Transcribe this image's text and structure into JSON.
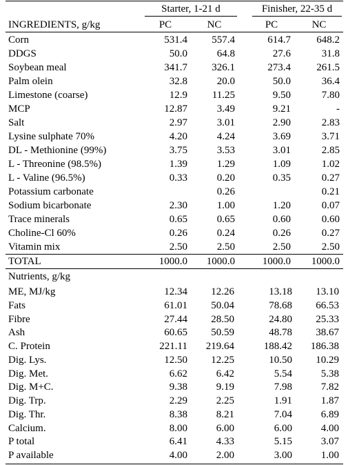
{
  "header": {
    "groups": [
      "Starter, 1-21 d",
      "Finisher, 22-35 d"
    ],
    "ingredients_label": "INGREDIENTS, g/kg",
    "cols": [
      "PC",
      "NC",
      "PC",
      "NC"
    ]
  },
  "ingredients": [
    {
      "label": "Corn",
      "v": [
        "531.4",
        "557.4",
        "614.7",
        "648.2"
      ]
    },
    {
      "label": "DDGS",
      "v": [
        "50.0",
        "64.8",
        "27.6",
        "31.8"
      ]
    },
    {
      "label": "Soybean meal",
      "v": [
        "341.7",
        "326.1",
        "273.4",
        "261.5"
      ]
    },
    {
      "label": "Palm olein",
      "v": [
        "32.8",
        "20.0",
        "50.0",
        "36.4"
      ]
    },
    {
      "label": "Limestone (coarse)",
      "v": [
        "12.9",
        "11.25",
        "9.50",
        "7.80"
      ]
    },
    {
      "label": "MCP",
      "v": [
        "12.87",
        "3.49",
        "9.21",
        "-"
      ]
    },
    {
      "label": "Salt",
      "v": [
        "2.97",
        "3.01",
        "2.90",
        "2.83"
      ]
    },
    {
      "label": "Lysine sulphate 70%",
      "v": [
        "4.20",
        "4.24",
        "3.69",
        "3.71"
      ]
    },
    {
      "label": "DL - Methionine (99%)",
      "v": [
        "3.75",
        "3.53",
        "3.01",
        "2.85"
      ]
    },
    {
      "label": "L - Threonine (98.5%)",
      "v": [
        "1.39",
        "1.29",
        "1.09",
        "1.02"
      ]
    },
    {
      "label": "L - Valine (96.5%)",
      "v": [
        "0.33",
        "0.20",
        "0.35",
        "0.27"
      ]
    },
    {
      "label": "Potassium carbonate",
      "v": [
        "",
        "0.26",
        "",
        "0.21"
      ]
    },
    {
      "label": "Sodium bicarbonate",
      "v": [
        "2.30",
        "1.00",
        "1.20",
        "0.07"
      ]
    },
    {
      "label": "Trace minerals",
      "v": [
        "0.65",
        "0.65",
        "0.60",
        "0.60"
      ]
    },
    {
      "label": "Choline-Cl 60%",
      "v": [
        "0.26",
        "0.24",
        "0.26",
        "0.27"
      ]
    },
    {
      "label": "Vitamin mix",
      "v": [
        "2.50",
        "2.50",
        "2.50",
        "2.50"
      ]
    }
  ],
  "total": {
    "label": "TOTAL",
    "v": [
      "1000.0",
      "1000.0",
      "1000.0",
      "1000.0"
    ]
  },
  "nutrients_label": "Nutrients, g/kg",
  "nutrients": [
    {
      "label": "ME, MJ/kg",
      "v": [
        "12.34",
        "12.26",
        "13.18",
        "13.10"
      ]
    },
    {
      "label": "Fats",
      "v": [
        "61.01",
        "50.04",
        "78.68",
        "66.53"
      ]
    },
    {
      "label": "Fibre",
      "v": [
        "27.44",
        "28.50",
        "24.80",
        "25.33"
      ]
    },
    {
      "label": "Ash",
      "v": [
        "60.65",
        "50.59",
        "48.78",
        "38.67"
      ]
    },
    {
      "label": "C. Protein",
      "v": [
        "221.11",
        "219.64",
        "188.42",
        "186.38"
      ]
    },
    {
      "label": "Dig. Lys.",
      "v": [
        "12.50",
        "12.25",
        "10.50",
        "10.29"
      ]
    },
    {
      "label": "Dig. Met.",
      "v": [
        "6.62",
        "6.42",
        "5.54",
        "5.38"
      ]
    },
    {
      "label": "Dig. M+C.",
      "v": [
        "9.38",
        "9.19",
        "7.98",
        "7.82"
      ]
    },
    {
      "label": "Dig. Trp.",
      "v": [
        "2.29",
        "2.25",
        "1.91",
        "1.87"
      ]
    },
    {
      "label": "Dig. Thr.",
      "v": [
        "8.38",
        "8.21",
        "7.04",
        "6.89"
      ]
    },
    {
      "label": "Calcium.",
      "v": [
        "8.00",
        "6.00",
        "6.00",
        "4.00"
      ]
    },
    {
      "label": "P total",
      "v": [
        "6.41",
        "4.33",
        "5.15",
        "3.07"
      ]
    },
    {
      "label": "P available",
      "v": [
        "4.00",
        "2.00",
        "3.00",
        "1.00"
      ]
    }
  ]
}
